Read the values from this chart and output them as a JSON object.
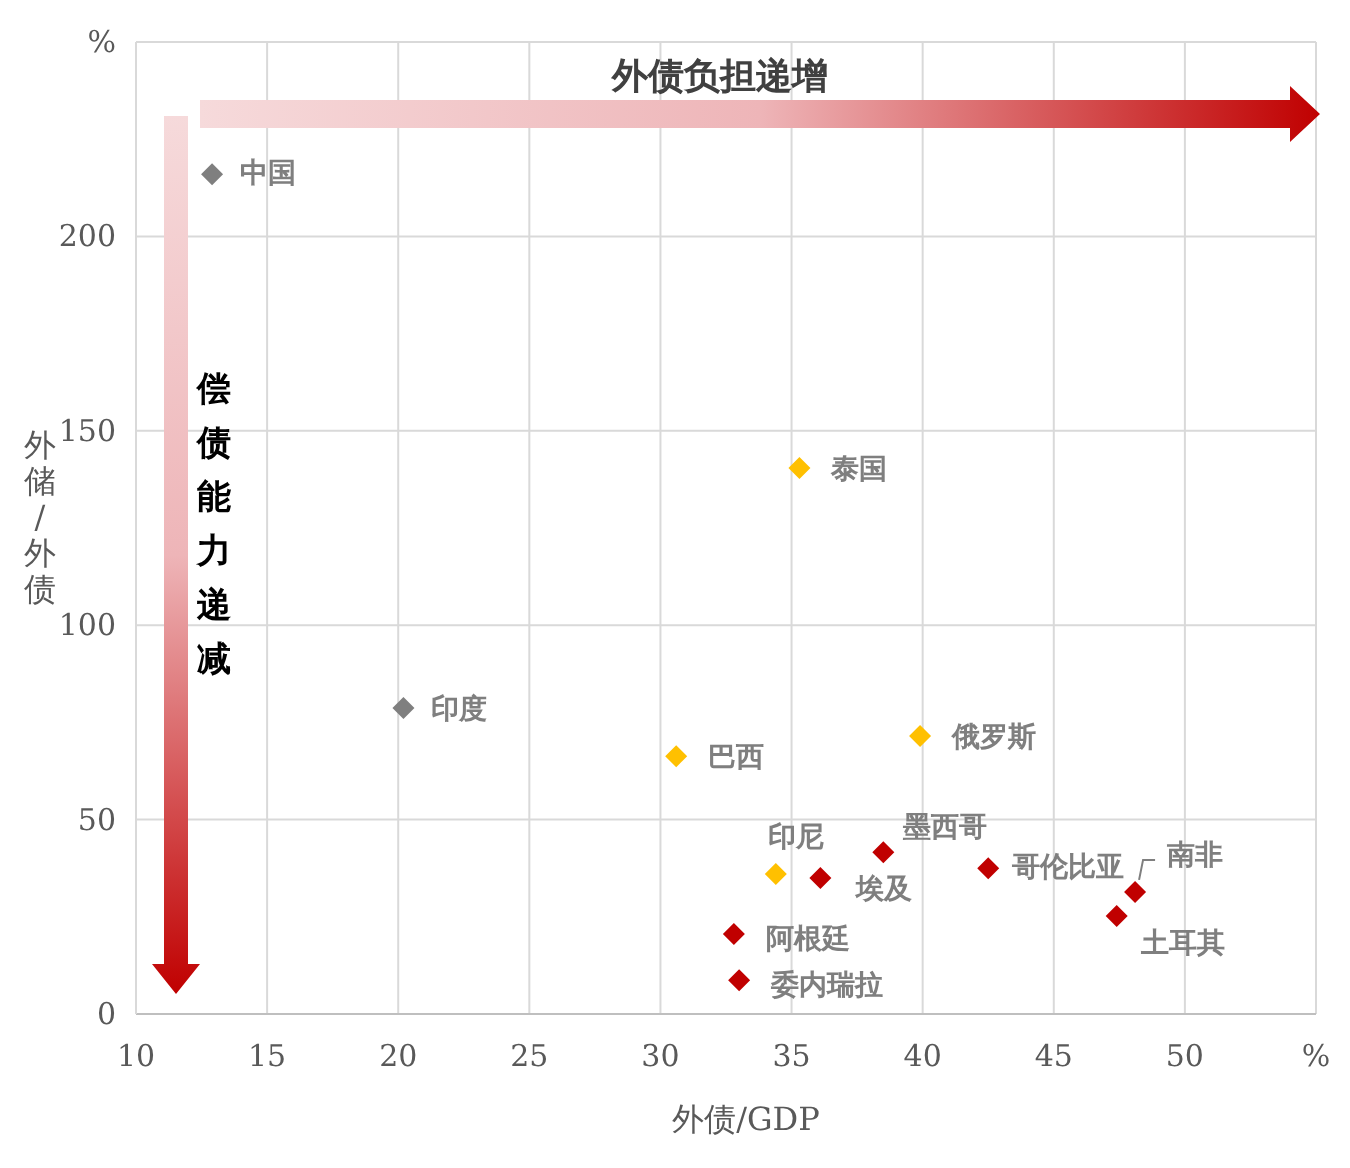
{
  "chart_data": {
    "type": "scatter",
    "xlabel": "外债/GDP",
    "ylabel": "外储/外债",
    "xlim": [
      10,
      55
    ],
    "xticks": [
      10,
      15,
      20,
      25,
      30,
      35,
      40,
      45,
      50,
      {
        "value": 55,
        "label": "%"
      }
    ],
    "ylim": [
      0,
      250
    ],
    "yticks": [
      0,
      50,
      100,
      150,
      200,
      {
        "value": 250,
        "label": "%"
      }
    ],
    "grid": true,
    "marker": "diamond",
    "series": [
      {
        "color": "#7f7f7f",
        "x": [
          12.9,
          20.2
        ],
        "values": [
          216,
          78.7
        ]
      },
      {
        "color": "#ffc000",
        "x": [
          35.3,
          30.6,
          39.9,
          34.4
        ],
        "values": [
          140.4,
          66.3,
          71.5,
          36
        ]
      },
      {
        "color": "#c00000",
        "x": [
          36.1,
          38.5,
          42.5,
          48.1,
          47.4,
          32.8,
          33.0
        ],
        "values": [
          35,
          41.6,
          37.5,
          31.4,
          25.2,
          20.6,
          8.7
        ]
      }
    ],
    "annotations": [
      "外债负担递增",
      "偿债能力递减",
      {
        "text": "中国",
        "x": 12.9,
        "y": 216
      },
      {
        "text": "印度",
        "x": 20.2,
        "y": 78.7
      },
      {
        "text": "泰国",
        "x": 35.3,
        "y": 140.4
      },
      {
        "text": "巴西",
        "x": 30.6,
        "y": 66.3
      },
      {
        "text": "俄罗斯",
        "x": 39.9,
        "y": 71.5
      },
      {
        "text": "印尼",
        "x": 34.4,
        "y": 36
      },
      {
        "text": "埃及",
        "x": 36.1,
        "y": 35
      },
      {
        "text": "墨西哥",
        "x": 38.5,
        "y": 41.6
      },
      {
        "text": "哥伦比亚",
        "x": 42.5,
        "y": 37.5
      },
      {
        "text": "南非",
        "x": 48.1,
        "y": 31.4
      },
      {
        "text": "土耳其",
        "x": 47.4,
        "y": 25.2
      },
      {
        "text": "阿根廷",
        "x": 32.8,
        "y": 20.6
      },
      {
        "text": "委内瑞拉",
        "x": 33.0,
        "y": 8.7
      }
    ]
  }
}
